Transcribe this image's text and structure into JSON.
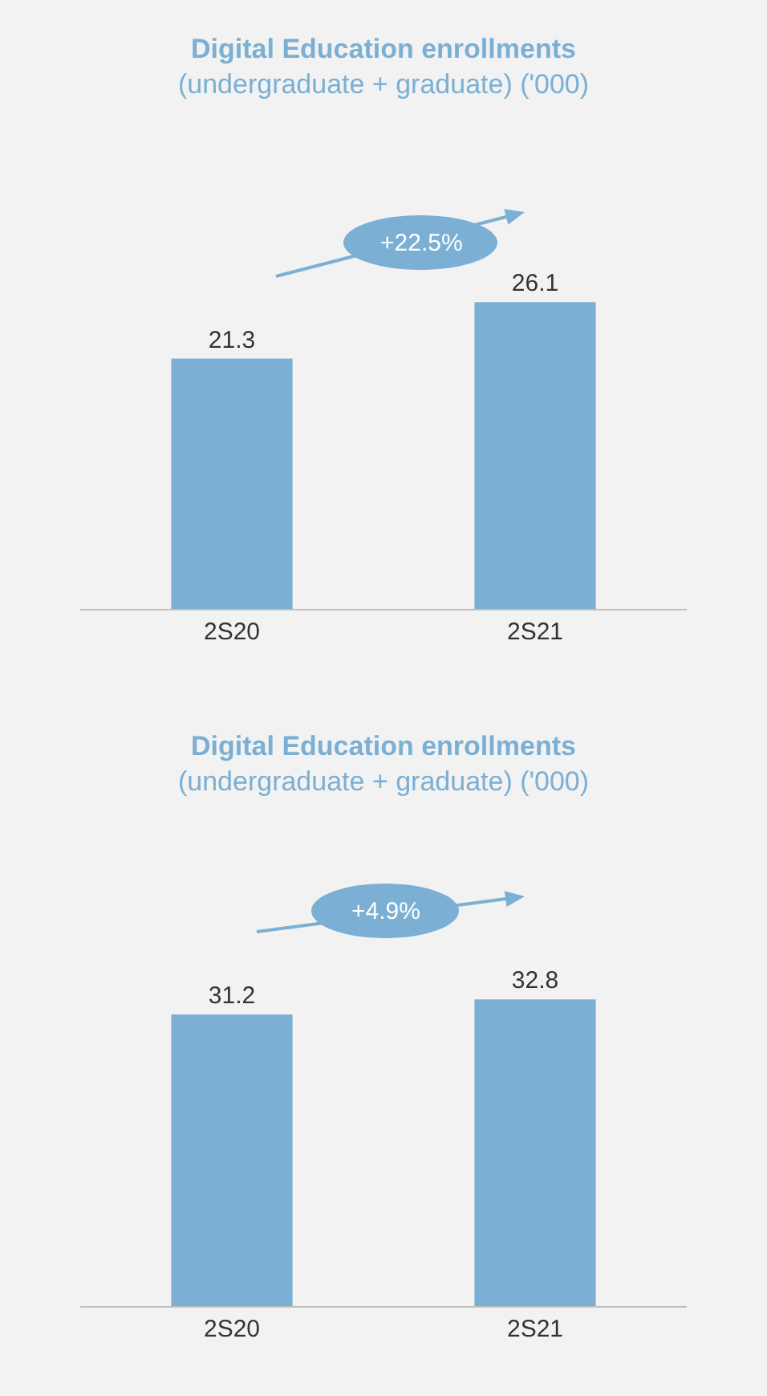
{
  "chart_data": [
    {
      "type": "bar",
      "title": "Digital Education enrollments",
      "subtitle": "(undergraduate + graduate) ('000)",
      "categories": [
        "2S20",
        "2S21"
      ],
      "values": [
        21.3,
        26.1
      ],
      "color": "#7bafd4",
      "data_labels": true,
      "annotations": [
        "+22.5%"
      ]
    },
    {
      "type": "bar",
      "title": "Digital Education enrollments",
      "subtitle": "(undergraduate + graduate) ('000)",
      "categories": [
        "2S20",
        "2S21"
      ],
      "values": [
        31.2,
        32.8
      ],
      "color": "#7bafd4",
      "data_labels": true,
      "annotations": [
        "+4.9%"
      ]
    }
  ]
}
